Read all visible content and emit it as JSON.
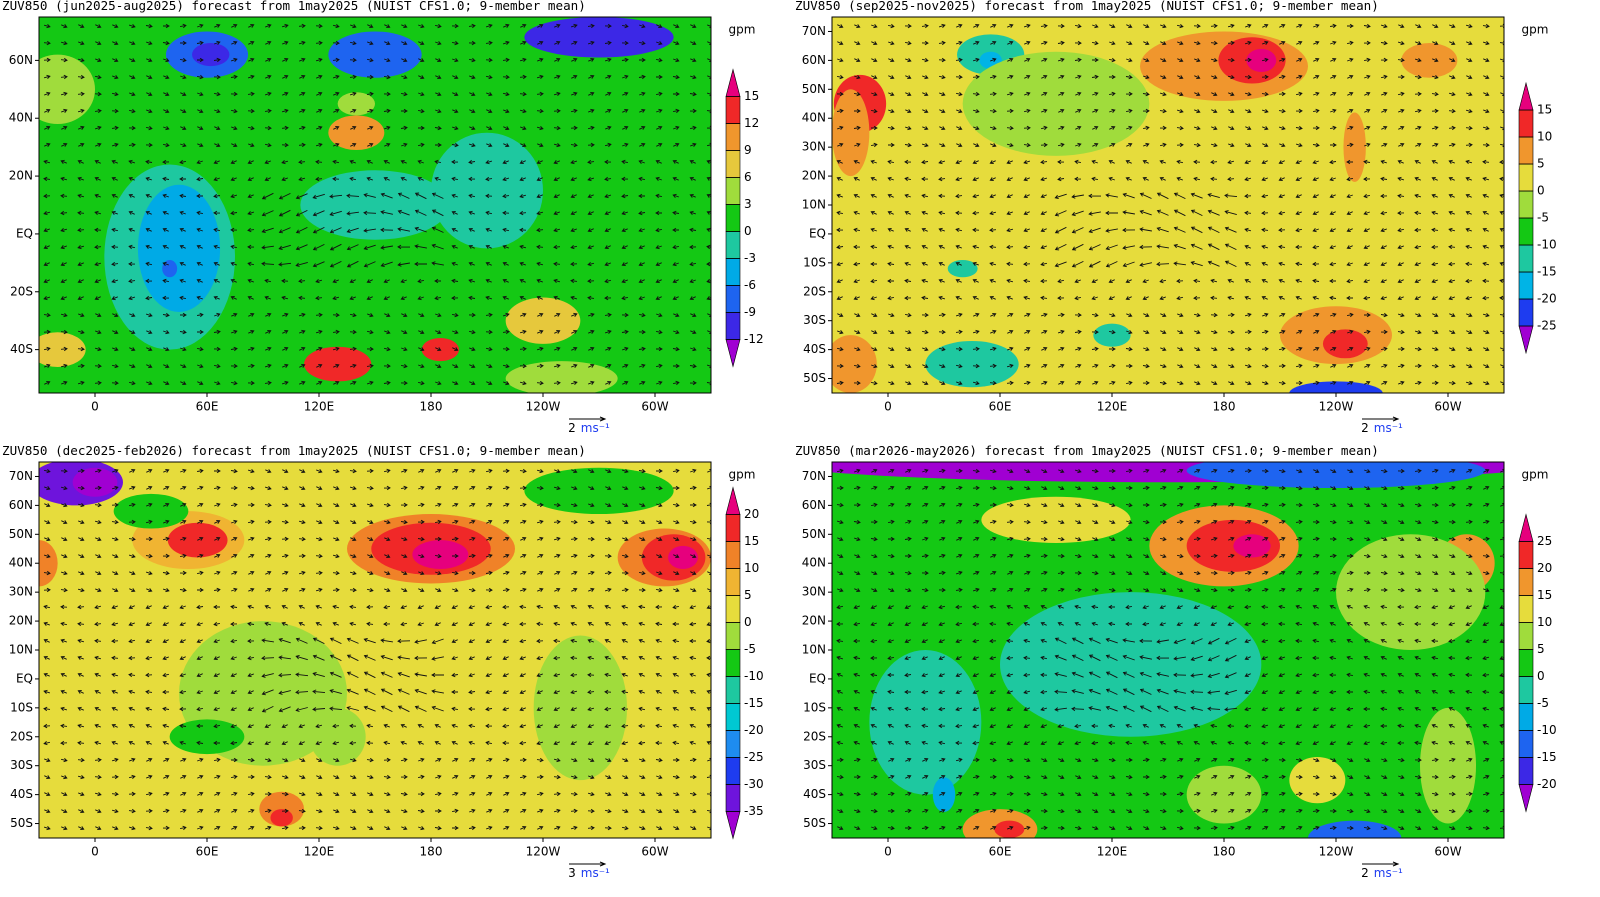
{
  "panels": [
    {
      "title": "ZUV850 (jun2025-aug2025) forecast from 1may2025 (NUIST CFS1.0; 9-member mean)",
      "unit": "gpm",
      "xlim": [
        -30,
        330
      ],
      "ylim": [
        -55,
        75
      ],
      "xticks": [
        0,
        {
          "value": 60,
          "label": "60E"
        },
        {
          "value": 120,
          "label": "120E"
        },
        180,
        {
          "value": 240,
          "label": "120W"
        },
        {
          "value": 300,
          "label": "60W"
        }
      ],
      "yticks": [
        {
          "value": 60,
          "label": "60N"
        },
        {
          "value": 40,
          "label": "40N"
        },
        {
          "value": 20,
          "label": "20N"
        },
        {
          "value": 0,
          "label": "EQ"
        },
        {
          "value": -20,
          "label": "20S"
        },
        {
          "value": -40,
          "label": "40S"
        }
      ],
      "levels": [
        -12,
        -9,
        -6,
        -3,
        0,
        3,
        6,
        9,
        12,
        15
      ],
      "colors": [
        "#a000d2",
        "#3c28e6",
        "#1e64f0",
        "#00aae6",
        "#1ec8a0",
        "#14c814",
        "#a0dc3c",
        "#e6c83c",
        "#f0962d",
        "#f02828",
        "#e6007d"
      ],
      "vector_scale": {
        "value": 2,
        "unit": "ms⁻¹"
      }
    },
    {
      "title": "ZUV850 (sep2025-nov2025) forecast from 1may2025 (NUIST CFS1.0; 9-member mean)",
      "unit": "gpm",
      "xlim": [
        -30,
        330
      ],
      "ylim": [
        -55,
        75
      ],
      "xticks": [
        0,
        {
          "value": 60,
          "label": "60E"
        },
        {
          "value": 120,
          "label": "120E"
        },
        180,
        {
          "value": 240,
          "label": "120W"
        },
        {
          "value": 300,
          "label": "60W"
        }
      ],
      "yticks": [
        {
          "value": 70,
          "label": "70N"
        },
        {
          "value": 60,
          "label": "60N"
        },
        {
          "value": 50,
          "label": "50N"
        },
        {
          "value": 40,
          "label": "40N"
        },
        {
          "value": 30,
          "label": "30N"
        },
        {
          "value": 20,
          "label": "20N"
        },
        {
          "value": 10,
          "label": "10N"
        },
        {
          "value": 0,
          "label": "EQ"
        },
        {
          "value": -10,
          "label": "10S"
        },
        {
          "value": -20,
          "label": "20S"
        },
        {
          "value": -30,
          "label": "30S"
        },
        {
          "value": -40,
          "label": "40S"
        },
        {
          "value": -50,
          "label": "50S"
        }
      ],
      "levels": [
        -25,
        -20,
        -15,
        -10,
        -5,
        0,
        5,
        10,
        15
      ],
      "colors": [
        "#a000d2",
        "#1e3cf0",
        "#00b4e6",
        "#1ec8a0",
        "#14c814",
        "#a0dc3c",
        "#e6dc3c",
        "#f0962d",
        "#f02828",
        "#e6007d"
      ],
      "vector_scale": {
        "value": 2,
        "unit": "ms⁻¹"
      }
    },
    {
      "title": "ZUV850 (dec2025-feb2026) forecast from 1may2025 (NUIST CFS1.0; 9-member mean)",
      "unit": "gpm",
      "xlim": [
        -30,
        330
      ],
      "ylim": [
        -55,
        75
      ],
      "xticks": [
        0,
        {
          "value": 60,
          "label": "60E"
        },
        {
          "value": 120,
          "label": "120E"
        },
        180,
        {
          "value": 240,
          "label": "120W"
        },
        {
          "value": 300,
          "label": "60W"
        }
      ],
      "yticks": [
        {
          "value": 70,
          "label": "70N"
        },
        {
          "value": 60,
          "label": "60N"
        },
        {
          "value": 50,
          "label": "50N"
        },
        {
          "value": 40,
          "label": "40N"
        },
        {
          "value": 30,
          "label": "30N"
        },
        {
          "value": 20,
          "label": "20N"
        },
        {
          "value": 10,
          "label": "10N"
        },
        {
          "value": 0,
          "label": "EQ"
        },
        {
          "value": -10,
          "label": "10S"
        },
        {
          "value": -20,
          "label": "20S"
        },
        {
          "value": -30,
          "label": "30S"
        },
        {
          "value": -40,
          "label": "40S"
        },
        {
          "value": -50,
          "label": "50S"
        }
      ],
      "levels": [
        -35,
        -30,
        -25,
        -20,
        -15,
        -10,
        -5,
        0,
        5,
        10,
        15,
        20
      ],
      "colors": [
        "#a000d2",
        "#6e14dc",
        "#1e3cf0",
        "#1e8cf0",
        "#00c8d2",
        "#1ec8a0",
        "#14c814",
        "#a0dc3c",
        "#e6dc3c",
        "#f0b432",
        "#f08228",
        "#f02828",
        "#e6007d"
      ],
      "vector_scale": {
        "value": 3,
        "unit": "ms⁻¹"
      }
    },
    {
      "title": "ZUV850 (mar2026-may2026) forecast from 1may2025 (NUIST CFS1.0; 9-member mean)",
      "unit": "gpm",
      "xlim": [
        -30,
        330
      ],
      "ylim": [
        -55,
        75
      ],
      "xticks": [
        0,
        {
          "value": 60,
          "label": "60E"
        },
        {
          "value": 120,
          "label": "120E"
        },
        180,
        {
          "value": 240,
          "label": "120W"
        },
        {
          "value": 300,
          "label": "60W"
        }
      ],
      "yticks": [
        {
          "value": 70,
          "label": "70N"
        },
        {
          "value": 60,
          "label": "60N"
        },
        {
          "value": 50,
          "label": "50N"
        },
        {
          "value": 40,
          "label": "40N"
        },
        {
          "value": 30,
          "label": "30N"
        },
        {
          "value": 20,
          "label": "20N"
        },
        {
          "value": 10,
          "label": "10N"
        },
        {
          "value": 0,
          "label": "EQ"
        },
        {
          "value": -10,
          "label": "10S"
        },
        {
          "value": -20,
          "label": "20S"
        },
        {
          "value": -30,
          "label": "30S"
        },
        {
          "value": -40,
          "label": "40S"
        },
        {
          "value": -50,
          "label": "50S"
        }
      ],
      "levels": [
        -20,
        -15,
        -10,
        -5,
        0,
        5,
        10,
        15,
        20,
        25
      ],
      "colors": [
        "#a000d2",
        "#3c28e6",
        "#1e64f0",
        "#00aae6",
        "#1ec8a0",
        "#14c814",
        "#a0dc3c",
        "#e6dc3c",
        "#f0962d",
        "#f02828",
        "#e6007d"
      ],
      "vector_scale": {
        "value": 2,
        "unit": "ms⁻¹"
      }
    }
  ]
}
